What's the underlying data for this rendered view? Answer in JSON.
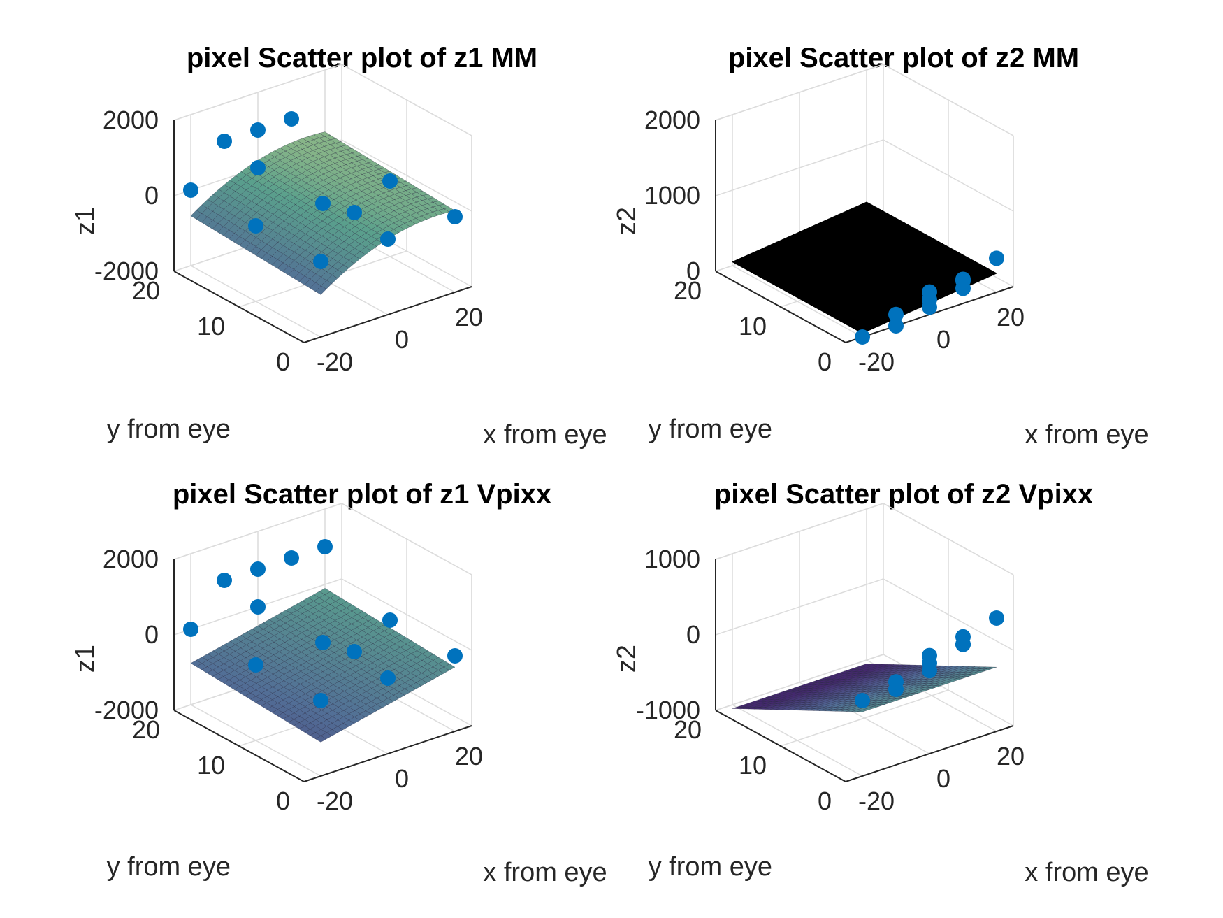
{
  "chart_data": [
    {
      "type": "scatter",
      "title": "pixel Scatter plot of z1 MM",
      "xlabel": "x from eye",
      "ylabel": "y from eye",
      "zlabel": "z1",
      "xticks": [
        "-20",
        "0",
        "20"
      ],
      "yticks": [
        "0",
        "10",
        "20"
      ],
      "zticks": [
        "-2000",
        "0",
        "2000"
      ],
      "xlim": [
        -25,
        25
      ],
      "ylim": [
        0,
        20
      ],
      "zlim": [
        -2000,
        2000
      ],
      "surface": {
        "a": 0,
        "bx": 26,
        "by": 10,
        "cx": -0.9,
        "shading": "colormap"
      },
      "points": [
        {
          "x": -20,
          "y": 0,
          "z": 0
        },
        {
          "x": -20,
          "y": 10,
          "z": 0
        },
        {
          "x": -20,
          "y": 20,
          "z": 0
        },
        {
          "x": 0,
          "y": 0,
          "z": 0
        },
        {
          "x": 0,
          "y": 10,
          "z": 0
        },
        {
          "x": 0,
          "y": 20,
          "z": 0
        },
        {
          "x": 20,
          "y": 0,
          "z": 0
        },
        {
          "x": 20,
          "y": 10,
          "z": 0
        },
        {
          "x": -10,
          "y": 0,
          "z": 1000
        },
        {
          "x": -10,
          "y": 20,
          "z": 1000
        },
        {
          "x": 10,
          "y": 20,
          "z": 1000
        },
        {
          "x": 0,
          "y": 20,
          "z": 1000
        }
      ]
    },
    {
      "type": "scatter",
      "title": "pixel Scatter plot of z2 MM",
      "xlabel": "x from eye",
      "ylabel": "y from eye",
      "zlabel": "z2",
      "xticks": [
        "-20",
        "0",
        "20"
      ],
      "yticks": [
        "0",
        "10",
        "20"
      ],
      "zticks": [
        "0",
        "1000",
        "2000"
      ],
      "xlim": [
        -25,
        25
      ],
      "ylim": [
        0,
        20
      ],
      "zlim": [
        0,
        2000
      ],
      "surface": {
        "a": 150,
        "bx": 5,
        "by": 0,
        "cx": 0,
        "shading": "black"
      },
      "points": [
        {
          "x": -20,
          "y": 0,
          "z": 0
        },
        {
          "x": -10,
          "y": 0,
          "z": 0
        },
        {
          "x": -10,
          "y": 0,
          "z": 150
        },
        {
          "x": 0,
          "y": 0,
          "z": 100
        },
        {
          "x": 0,
          "y": 0,
          "z": 200
        },
        {
          "x": 0,
          "y": 0,
          "z": 300
        },
        {
          "x": 10,
          "y": 0,
          "z": 200
        },
        {
          "x": 10,
          "y": 0,
          "z": 320
        },
        {
          "x": 10,
          "y": 0,
          "z": 300
        },
        {
          "x": 20,
          "y": 0,
          "z": 450
        }
      ]
    },
    {
      "type": "scatter",
      "title": "pixel Scatter plot of z1 Vpixx",
      "xlabel": "x from eye",
      "ylabel": "y from eye",
      "zlabel": "z1",
      "xticks": [
        "-20",
        "0",
        "20"
      ],
      "yticks": [
        "0",
        "10",
        "20"
      ],
      "zticks": [
        "-2000",
        "0",
        "2000"
      ],
      "xlim": [
        -25,
        25
      ],
      "ylim": [
        0,
        20
      ],
      "zlim": [
        -2000,
        2000
      ],
      "surface": {
        "a": -700,
        "bx": 20,
        "by": 10,
        "cx": 0,
        "shading": "colormap"
      },
      "points": [
        {
          "x": -20,
          "y": 0,
          "z": 0
        },
        {
          "x": -20,
          "y": 10,
          "z": 0
        },
        {
          "x": -20,
          "y": 20,
          "z": 0
        },
        {
          "x": 0,
          "y": 0,
          "z": 0
        },
        {
          "x": 0,
          "y": 10,
          "z": 0
        },
        {
          "x": 0,
          "y": 20,
          "z": 0
        },
        {
          "x": 20,
          "y": 0,
          "z": 0
        },
        {
          "x": 20,
          "y": 10,
          "z": 0
        },
        {
          "x": -10,
          "y": 0,
          "z": 1000
        },
        {
          "x": -10,
          "y": 20,
          "z": 1000
        },
        {
          "x": 10,
          "y": 20,
          "z": 1000
        },
        {
          "x": 20,
          "y": 20,
          "z": 1000
        },
        {
          "x": 0,
          "y": 20,
          "z": 1000
        }
      ]
    },
    {
      "type": "scatter",
      "title": "pixel Scatter plot of z2 Vpixx",
      "xlabel": "x from eye",
      "ylabel": "y from eye",
      "zlabel": "z2",
      "xticks": [
        "-20",
        "0",
        "20"
      ],
      "yticks": [
        "0",
        "10",
        "20"
      ],
      "zticks": [
        "-1000",
        "0",
        "1000"
      ],
      "xlim": [
        -25,
        25
      ],
      "ylim": [
        0,
        20
      ],
      "zlim": [
        -1000,
        1000
      ],
      "surface": {
        "a": -150,
        "bx": 0,
        "by": -45,
        "cx": 0,
        "shading": "colormap"
      },
      "points": [
        {
          "x": -20,
          "y": 0,
          "z": 0
        },
        {
          "x": -10,
          "y": 0,
          "z": 0
        },
        {
          "x": -10,
          "y": 0,
          "z": 100
        },
        {
          "x": 0,
          "y": 0,
          "z": 100
        },
        {
          "x": 0,
          "y": 0,
          "z": 200
        },
        {
          "x": 0,
          "y": 0,
          "z": 300
        },
        {
          "x": 10,
          "y": 0,
          "z": 300
        },
        {
          "x": 10,
          "y": 0,
          "z": 400
        },
        {
          "x": 10,
          "y": 0,
          "z": 300
        },
        {
          "x": 20,
          "y": 0,
          "z": 500
        }
      ]
    }
  ]
}
